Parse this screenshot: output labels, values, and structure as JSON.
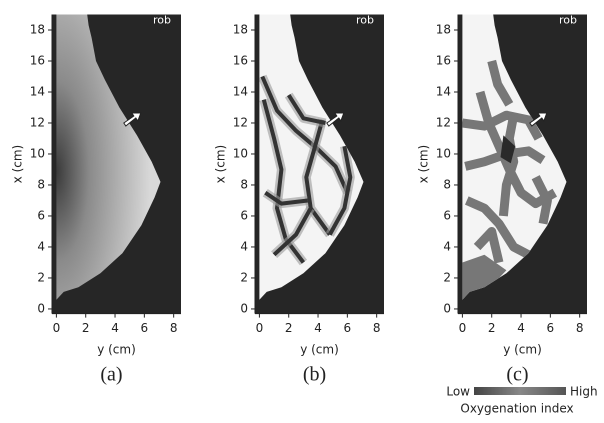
{
  "chart_data": [
    {
      "type": "image",
      "panel_label": "(a)",
      "annotation": "rob",
      "xlabel": "y (cm)",
      "ylabel": "x (cm)",
      "xlim": [
        -0.3,
        8.5
      ],
      "ylim": [
        -0.3,
        19
      ],
      "xticks": [
        0,
        2,
        4,
        6,
        8
      ],
      "yticks": [
        0,
        2,
        4,
        6,
        8,
        10,
        12,
        14,
        16,
        18
      ]
    },
    {
      "type": "image",
      "panel_label": "(b)",
      "annotation": "rob",
      "xlabel": "y (cm)",
      "ylabel": "x (cm)",
      "xlim": [
        -0.3,
        8.5
      ],
      "ylim": [
        -0.3,
        19
      ],
      "xticks": [
        0,
        2,
        4,
        6,
        8
      ],
      "yticks": [
        0,
        2,
        4,
        6,
        8,
        10,
        12,
        14,
        16,
        18
      ]
    },
    {
      "type": "image",
      "panel_label": "(c)",
      "annotation": "rob",
      "xlabel": "y (cm)",
      "ylabel": "x (cm)",
      "xlim": [
        -0.3,
        8.5
      ],
      "ylim": [
        -0.3,
        19
      ],
      "xticks": [
        0,
        2,
        4,
        6,
        8
      ],
      "yticks": [
        0,
        2,
        4,
        6,
        8,
        10,
        12,
        14,
        16,
        18
      ],
      "colorbar": {
        "low": "Low",
        "high": "High",
        "label": "Oxygenation index"
      }
    }
  ]
}
